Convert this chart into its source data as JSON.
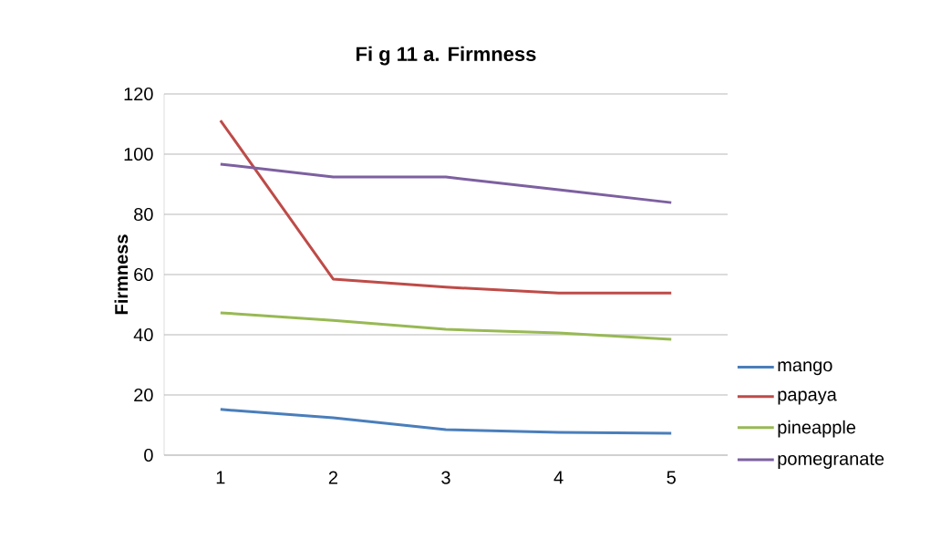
{
  "chart_data": {
    "type": "line",
    "title": "Fi g 11 a. Firmness",
    "ylabel": "Firmness",
    "categories": [
      "1",
      "2",
      "3",
      "4",
      "5"
    ],
    "series": [
      {
        "name": "mango",
        "color": "#4a7ebb",
        "values": [
          15.2,
          12.4,
          8.5,
          7.6,
          7.3
        ]
      },
      {
        "name": "papaya",
        "color": "#be4b48",
        "values": [
          111.2,
          58.5,
          55.8,
          53.9,
          53.9
        ]
      },
      {
        "name": "pineapple",
        "color": "#98b954",
        "values": [
          47.3,
          44.8,
          41.8,
          40.6,
          38.5
        ]
      },
      {
        "name": "pomegranate",
        "color": "#7d60a0",
        "values": [
          96.7,
          92.4,
          92.4,
          88.2,
          83.9
        ]
      }
    ],
    "ylim": [
      0,
      120
    ],
    "yticks": [
      0,
      20,
      40,
      60,
      80,
      100,
      120
    ],
    "grid": "y",
    "legend": "right"
  }
}
